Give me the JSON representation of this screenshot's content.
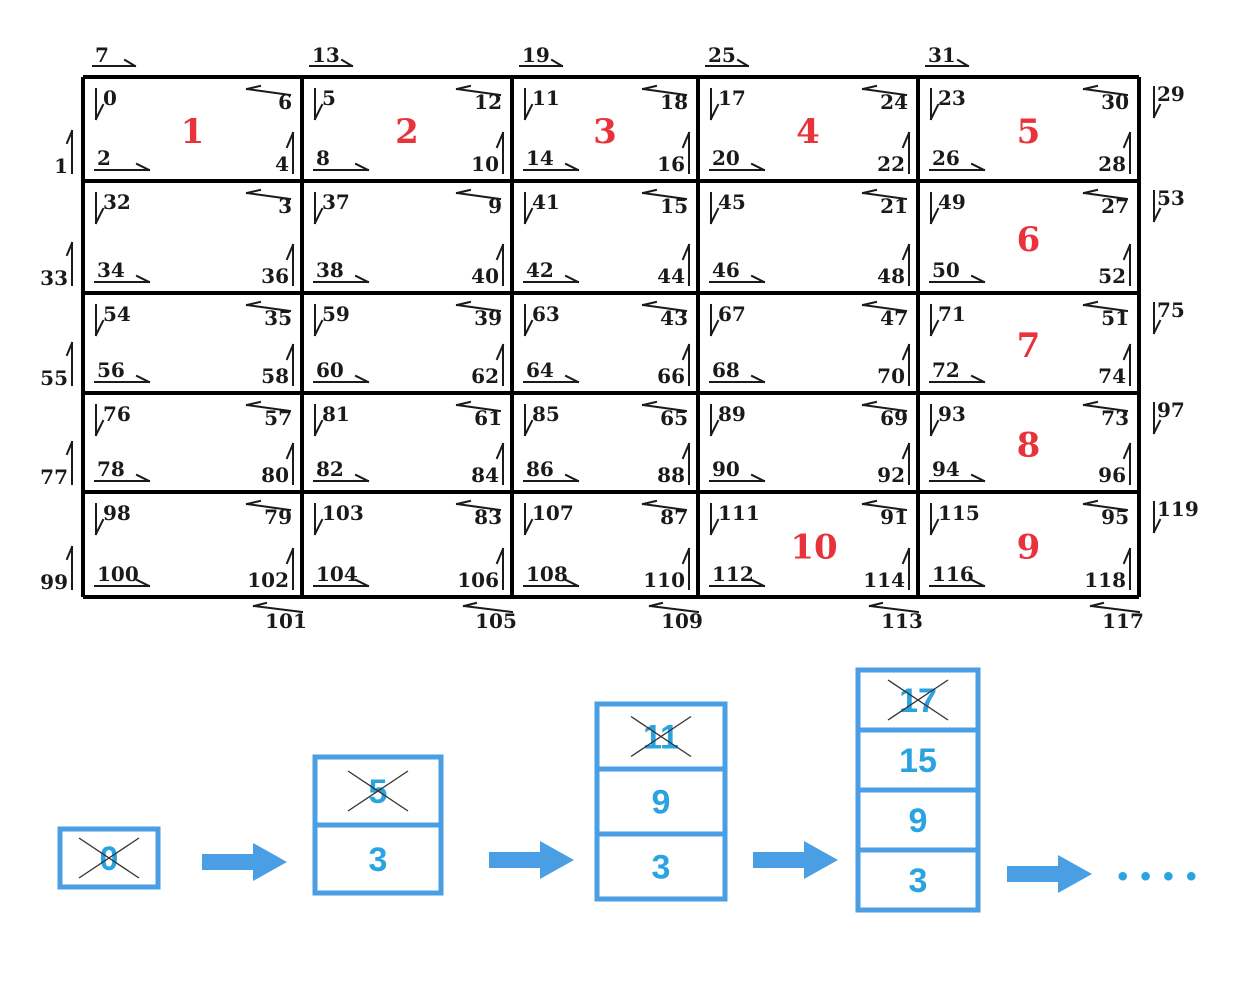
{
  "grid": {
    "cells": [
      [
        {
          "tl": "0",
          "tr": "6",
          "bl": "2",
          "br": "4",
          "block": "1"
        },
        {
          "tl": "5",
          "tr": "12",
          "bl": "8",
          "br": "10",
          "block": "2"
        },
        {
          "tl": "11",
          "tr": "18",
          "bl": "14",
          "br": "16",
          "block": "3"
        },
        {
          "tl": "17",
          "tr": "24",
          "bl": "20",
          "br": "22",
          "block": "4"
        },
        {
          "tl": "23",
          "tr": "30",
          "bl": "26",
          "br": "28",
          "block": "5"
        }
      ],
      [
        {
          "tl": "32",
          "tr": "3",
          "bl": "34",
          "br": "36",
          "block": ""
        },
        {
          "tl": "37",
          "tr": "9",
          "bl": "38",
          "br": "40",
          "block": ""
        },
        {
          "tl": "41",
          "tr": "15",
          "bl": "42",
          "br": "44",
          "block": ""
        },
        {
          "tl": "45",
          "tr": "21",
          "bl": "46",
          "br": "48",
          "block": ""
        },
        {
          "tl": "49",
          "tr": "27",
          "bl": "50",
          "br": "52",
          "block": "6"
        }
      ],
      [
        {
          "tl": "54",
          "tr": "35",
          "bl": "56",
          "br": "58",
          "block": ""
        },
        {
          "tl": "59",
          "tr": "39",
          "bl": "60",
          "br": "62",
          "block": ""
        },
        {
          "tl": "63",
          "tr": "43",
          "bl": "64",
          "br": "66",
          "block": ""
        },
        {
          "tl": "67",
          "tr": "47",
          "bl": "68",
          "br": "70",
          "block": ""
        },
        {
          "tl": "71",
          "tr": "51",
          "bl": "72",
          "br": "74",
          "block": "7"
        }
      ],
      [
        {
          "tl": "76",
          "tr": "57",
          "bl": "78",
          "br": "80",
          "block": ""
        },
        {
          "tl": "81",
          "tr": "61",
          "bl": "82",
          "br": "84",
          "block": ""
        },
        {
          "tl": "85",
          "tr": "65",
          "bl": "86",
          "br": "88",
          "block": ""
        },
        {
          "tl": "89",
          "tr": "69",
          "bl": "90",
          "br": "92",
          "block": ""
        },
        {
          "tl": "93",
          "tr": "73",
          "bl": "94",
          "br": "96",
          "block": "8"
        }
      ],
      [
        {
          "tl": "98",
          "tr": "79",
          "bl": "100",
          "br": "102",
          "block": ""
        },
        {
          "tl": "103",
          "tr": "83",
          "bl": "104",
          "br": "106",
          "block": ""
        },
        {
          "tl": "107",
          "tr": "87",
          "bl": "108",
          "br": "110",
          "block": ""
        },
        {
          "tl": "111",
          "tr": "91",
          "bl": "112",
          "br": "114",
          "block": "10"
        },
        {
          "tl": "115",
          "tr": "95",
          "bl": "116",
          "br": "118",
          "block": "9"
        }
      ]
    ],
    "top_labels": [
      "7",
      "13",
      "19",
      "25",
      "31"
    ],
    "bottom_labels": [
      "101",
      "105",
      "109",
      "113",
      "117"
    ],
    "left_labels": [
      "1",
      "33",
      "55",
      "77",
      "99"
    ],
    "right_labels": [
      "29",
      "53",
      "75",
      "97",
      "119"
    ]
  },
  "stacks": [
    {
      "items": [
        "0"
      ],
      "crossed_top": true
    },
    {
      "items": [
        "5",
        "3"
      ],
      "crossed_top": true
    },
    {
      "items": [
        "11",
        "9",
        "3"
      ],
      "crossed_top": true
    },
    {
      "items": [
        "17",
        "15",
        "9",
        "3"
      ],
      "crossed_top": true
    }
  ],
  "ellipsis": "• • • •",
  "colors": {
    "grid_line": "#000000",
    "label": "#1a1a1a",
    "block_number": "#e8333c",
    "stack_text": "#2aa3e0",
    "stack_border": "#4a9ee3",
    "arrow": "#4a9ee3"
  }
}
